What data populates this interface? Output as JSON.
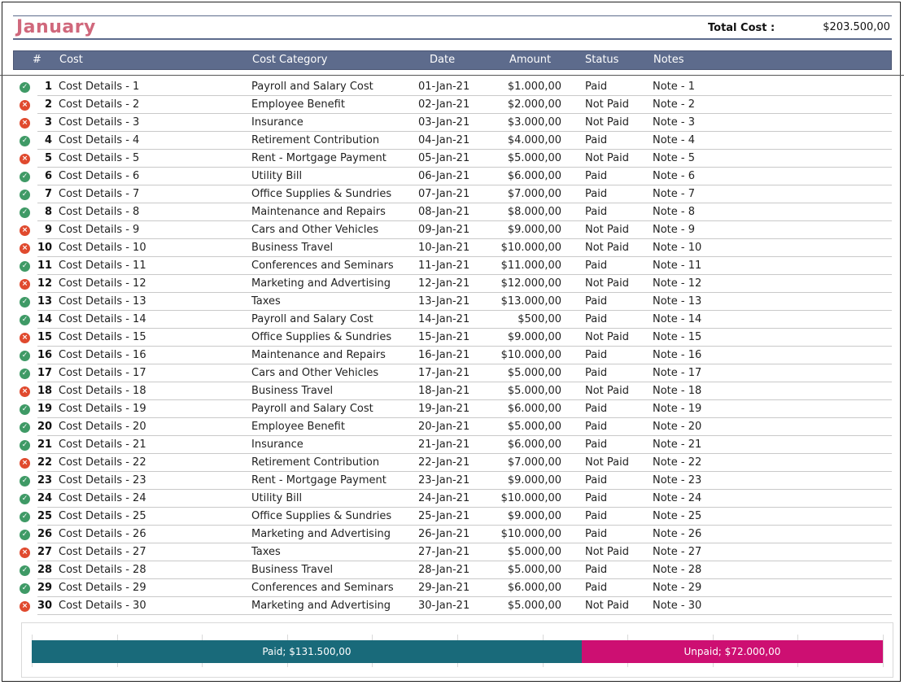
{
  "title": "January",
  "total_label": "Total Cost :",
  "total_value": "$203.500,00",
  "columns": [
    "#",
    "Cost",
    "Cost Category",
    "Date",
    "Amount",
    "Status",
    "Notes"
  ],
  "colors": {
    "header": "#5d6b8c",
    "title": "#d0687c",
    "paid_icon": "#3f9a66",
    "unpaid_icon": "#e04a2e",
    "paid_bar": "#196a7a",
    "unpaid_bar": "#cd0f72"
  },
  "rows": [
    {
      "num": "1",
      "cost": "Cost Details - 1",
      "category": "Payroll and Salary Cost",
      "date": "01-Jan-21",
      "amount": "$1.000,00",
      "status": "Paid",
      "note": "Note - 1",
      "icon": "check-circle-icon"
    },
    {
      "num": "2",
      "cost": "Cost Details - 2",
      "category": "Employee Benefit",
      "date": "02-Jan-21",
      "amount": "$2.000,00",
      "status": "Not Paid",
      "note": "Note - 2",
      "icon": "x-circle-icon"
    },
    {
      "num": "3",
      "cost": "Cost Details - 3",
      "category": "Insurance",
      "date": "03-Jan-21",
      "amount": "$3.000,00",
      "status": "Not Paid",
      "note": "Note - 3",
      "icon": "x-circle-icon"
    },
    {
      "num": "4",
      "cost": "Cost Details - 4",
      "category": "Retirement Contribution",
      "date": "04-Jan-21",
      "amount": "$4.000,00",
      "status": "Paid",
      "note": "Note - 4",
      "icon": "check-circle-icon"
    },
    {
      "num": "5",
      "cost": "Cost Details - 5",
      "category": "Rent - Mortgage Payment",
      "date": "05-Jan-21",
      "amount": "$5.000,00",
      "status": "Not Paid",
      "note": "Note - 5",
      "icon": "x-circle-icon"
    },
    {
      "num": "6",
      "cost": "Cost Details - 6",
      "category": "Utility Bill",
      "date": "06-Jan-21",
      "amount": "$6.000,00",
      "status": "Paid",
      "note": "Note - 6",
      "icon": "check-circle-icon"
    },
    {
      "num": "7",
      "cost": "Cost Details - 7",
      "category": "Office Supplies & Sundries",
      "date": "07-Jan-21",
      "amount": "$7.000,00",
      "status": "Paid",
      "note": "Note - 7",
      "icon": "check-circle-icon"
    },
    {
      "num": "8",
      "cost": "Cost Details - 8",
      "category": "Maintenance and Repairs",
      "date": "08-Jan-21",
      "amount": "$8.000,00",
      "status": "Paid",
      "note": "Note - 8",
      "icon": "check-circle-icon"
    },
    {
      "num": "9",
      "cost": "Cost Details - 9",
      "category": "Cars and Other Vehicles",
      "date": "09-Jan-21",
      "amount": "$9.000,00",
      "status": "Not Paid",
      "note": "Note - 9",
      "icon": "x-circle-icon"
    },
    {
      "num": "10",
      "cost": "Cost Details - 10",
      "category": "Business Travel",
      "date": "10-Jan-21",
      "amount": "$10.000,00",
      "status": "Not Paid",
      "note": "Note - 10",
      "icon": "x-circle-icon"
    },
    {
      "num": "11",
      "cost": "Cost Details - 11",
      "category": "Conferences and Seminars",
      "date": "11-Jan-21",
      "amount": "$11.000,00",
      "status": "Paid",
      "note": "Note - 11",
      "icon": "check-circle-icon"
    },
    {
      "num": "12",
      "cost": "Cost Details - 12",
      "category": "Marketing and Advertising",
      "date": "12-Jan-21",
      "amount": "$12.000,00",
      "status": "Not Paid",
      "note": "Note - 12",
      "icon": "x-circle-icon"
    },
    {
      "num": "13",
      "cost": "Cost Details - 13",
      "category": "Taxes",
      "date": "13-Jan-21",
      "amount": "$13.000,00",
      "status": "Paid",
      "note": "Note - 13",
      "icon": "check-circle-icon"
    },
    {
      "num": "14",
      "cost": "Cost Details - 14",
      "category": "Payroll and Salary Cost",
      "date": "14-Jan-21",
      "amount": "$500,00",
      "status": "Paid",
      "note": "Note - 14",
      "icon": "check-circle-icon"
    },
    {
      "num": "15",
      "cost": "Cost Details - 15",
      "category": "Office Supplies & Sundries",
      "date": "15-Jan-21",
      "amount": "$9.000,00",
      "status": "Not Paid",
      "note": "Note - 15",
      "icon": "x-circle-icon"
    },
    {
      "num": "16",
      "cost": "Cost Details - 16",
      "category": "Maintenance and Repairs",
      "date": "16-Jan-21",
      "amount": "$10.000,00",
      "status": "Paid",
      "note": "Note - 16",
      "icon": "check-circle-icon"
    },
    {
      "num": "17",
      "cost": "Cost Details - 17",
      "category": "Cars and Other Vehicles",
      "date": "17-Jan-21",
      "amount": "$5.000,00",
      "status": "Paid",
      "note": "Note - 17",
      "icon": "check-circle-icon"
    },
    {
      "num": "18",
      "cost": "Cost Details - 18",
      "category": "Business Travel",
      "date": "18-Jan-21",
      "amount": "$5.000,00",
      "status": "Not Paid",
      "note": "Note - 18",
      "icon": "x-circle-icon"
    },
    {
      "num": "19",
      "cost": "Cost Details - 19",
      "category": "Payroll and Salary Cost",
      "date": "19-Jan-21",
      "amount": "$6.000,00",
      "status": "Paid",
      "note": "Note - 19",
      "icon": "check-circle-icon"
    },
    {
      "num": "20",
      "cost": "Cost Details - 20",
      "category": "Employee Benefit",
      "date": "20-Jan-21",
      "amount": "$5.000,00",
      "status": "Paid",
      "note": "Note - 20",
      "icon": "check-circle-icon"
    },
    {
      "num": "21",
      "cost": "Cost Details - 21",
      "category": "Insurance",
      "date": "21-Jan-21",
      "amount": "$6.000,00",
      "status": "Paid",
      "note": "Note - 21",
      "icon": "check-circle-icon"
    },
    {
      "num": "22",
      "cost": "Cost Details - 22",
      "category": "Retirement Contribution",
      "date": "22-Jan-21",
      "amount": "$7.000,00",
      "status": "Not Paid",
      "note": "Note - 22",
      "icon": "x-circle-icon"
    },
    {
      "num": "23",
      "cost": "Cost Details - 23",
      "category": "Rent - Mortgage Payment",
      "date": "23-Jan-21",
      "amount": "$9.000,00",
      "status": "Paid",
      "note": "Note - 23",
      "icon": "check-circle-icon"
    },
    {
      "num": "24",
      "cost": "Cost Details - 24",
      "category": "Utility Bill",
      "date": "24-Jan-21",
      "amount": "$10.000,00",
      "status": "Paid",
      "note": "Note - 24",
      "icon": "check-circle-icon"
    },
    {
      "num": "25",
      "cost": "Cost Details - 25",
      "category": "Office Supplies & Sundries",
      "date": "25-Jan-21",
      "amount": "$9.000,00",
      "status": "Paid",
      "note": "Note - 25",
      "icon": "check-circle-icon"
    },
    {
      "num": "26",
      "cost": "Cost Details - 26",
      "category": "Marketing and Advertising",
      "date": "26-Jan-21",
      "amount": "$10.000,00",
      "status": "Paid",
      "note": "Note - 26",
      "icon": "check-circle-icon"
    },
    {
      "num": "27",
      "cost": "Cost Details - 27",
      "category": "Taxes",
      "date": "27-Jan-21",
      "amount": "$5.000,00",
      "status": "Not Paid",
      "note": "Note - 27",
      "icon": "x-circle-icon"
    },
    {
      "num": "28",
      "cost": "Cost Details - 28",
      "category": "Business Travel",
      "date": "28-Jan-21",
      "amount": "$5.000,00",
      "status": "Paid",
      "note": "Note - 28",
      "icon": "check-circle-icon"
    },
    {
      "num": "29",
      "cost": "Cost Details - 29",
      "category": "Conferences and Seminars",
      "date": "29-Jan-21",
      "amount": "$6.000,00",
      "status": "Paid",
      "note": "Note - 29",
      "icon": "check-circle-icon"
    },
    {
      "num": "30",
      "cost": "Cost Details - 30",
      "category": "Marketing and Advertising",
      "date": "30-Jan-21",
      "amount": "$5.000,00",
      "status": "Not Paid",
      "note": "Note - 30",
      "icon": "x-circle-icon"
    }
  ],
  "chart_data": {
    "type": "bar",
    "orientation": "horizontal-stacked",
    "categories": [
      ""
    ],
    "series": [
      {
        "name": "Paid",
        "values": [
          131500
        ],
        "label": "Paid; $131.500,00",
        "color": "#196a7a"
      },
      {
        "name": "Unpaid",
        "values": [
          72000
        ],
        "label": "Unpaid; $72.000,00",
        "color": "#cd0f72"
      }
    ],
    "xlim": [
      0,
      203500
    ],
    "grid": true,
    "gridline_count": 10
  }
}
